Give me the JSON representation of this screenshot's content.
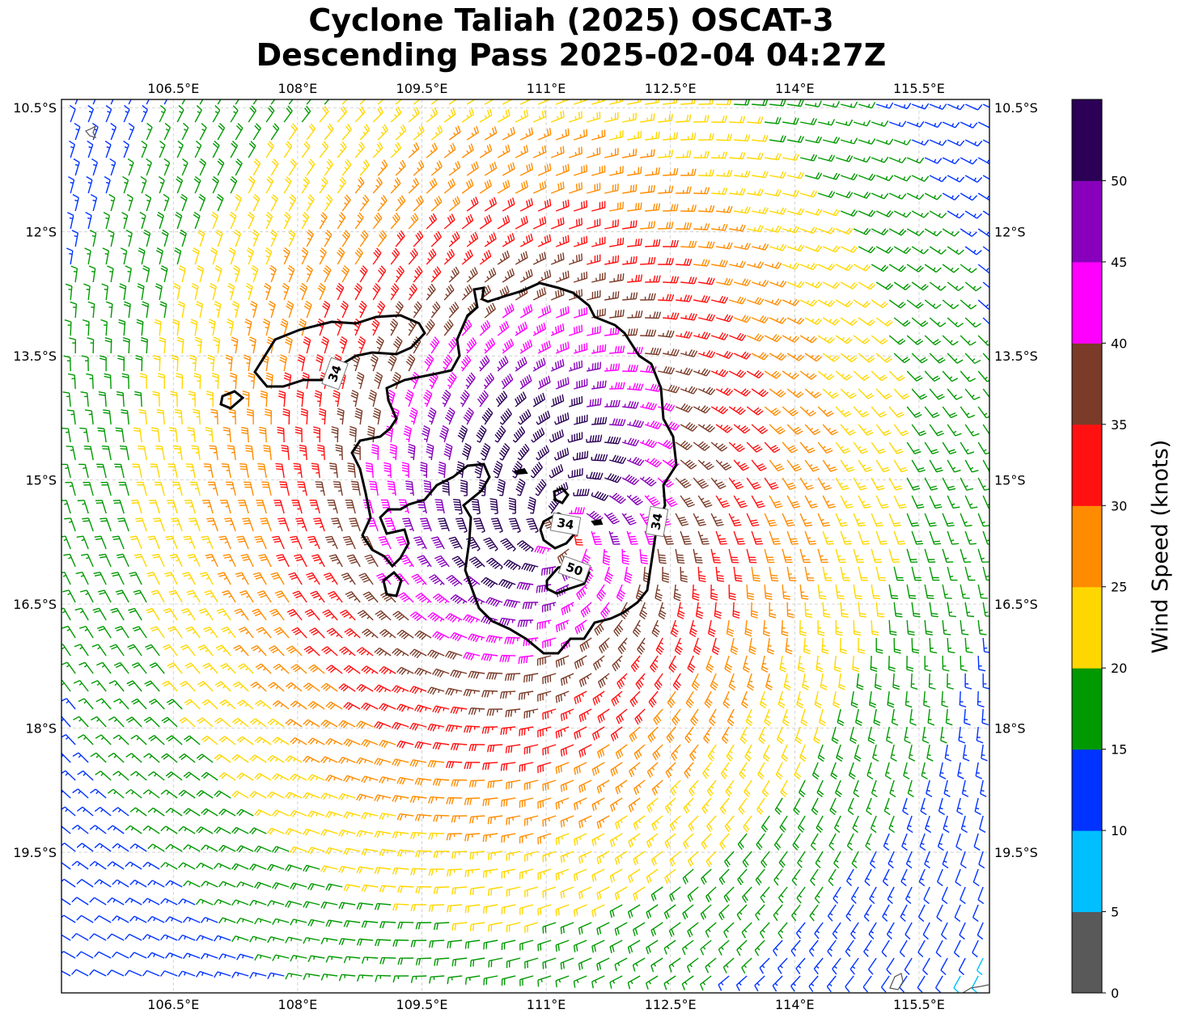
{
  "title": {
    "line1": "Cyclone Taliah (2025) OSCAT-3",
    "line2": "Descending Pass 2025-02-04 04:27Z"
  },
  "chart_data": {
    "type": "wind_barbs_map",
    "title": "Cyclone Taliah (2025) OSCAT-3 Descending Pass 2025-02-04 04:27Z",
    "lon_range": [
      105.15,
      116.35
    ],
    "lat_range": [
      -21.2,
      -10.4
    ],
    "lon_ticks": [
      "106.5°E",
      "108°E",
      "109.5°E",
      "111°E",
      "112.5°E",
      "114°E",
      "115.5°E"
    ],
    "lon_tick_values": [
      106.5,
      108,
      109.5,
      111,
      112.5,
      114,
      115.5
    ],
    "lat_ticks": [
      "10.5°S",
      "12°S",
      "13.5°S",
      "15°S",
      "16.5°S",
      "18°S",
      "19.5°S"
    ],
    "lat_tick_values": [
      -10.5,
      -12,
      -13.5,
      -15,
      -16.5,
      -18,
      -19.5
    ],
    "grid": true,
    "cyclone_center": {
      "lon": 111.2,
      "lat": -15.6
    },
    "colorbar": {
      "label": "Wind Speed (knots)",
      "ticks": [
        "0",
        "5",
        "10",
        "15",
        "20",
        "25",
        "30",
        "35",
        "40",
        "45",
        "50"
      ],
      "bounds": [
        0,
        5,
        10,
        15,
        20,
        25,
        30,
        35,
        40,
        45,
        50,
        55
      ],
      "colors": [
        "#595959",
        "#00bfff",
        "#0033ff",
        "#009900",
        "#ffd700",
        "#ff8c00",
        "#ff1111",
        "#7a3b29",
        "#ff00ff",
        "#8800bb",
        "#2b0056"
      ]
    },
    "contour_labels": [
      "34",
      "34",
      "34",
      "50"
    ]
  }
}
